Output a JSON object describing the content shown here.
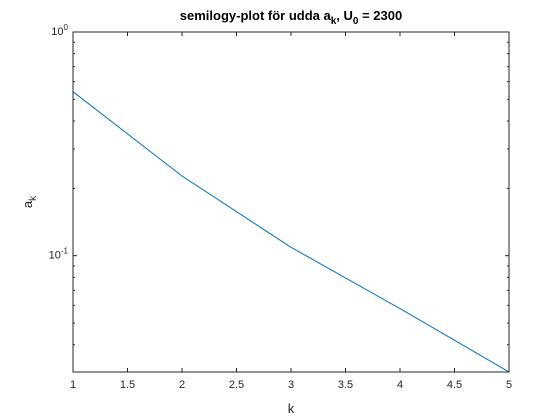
{
  "chart_data": {
    "type": "line",
    "title": {
      "prefix": "semilogy-plot för udda a",
      "prefix_sub": "k",
      "middle": ", U",
      "middle_sub": "0",
      "suffix": " = 2300"
    },
    "xlabel": "k",
    "ylabel": {
      "main": "a",
      "sub": "k"
    },
    "xscale": "linear",
    "yscale": "log",
    "xlim": [
      1,
      5
    ],
    "ylim": [
      0.0302,
      1
    ],
    "grid": false,
    "xticks": [
      1,
      1.5,
      2,
      2.5,
      3,
      3.5,
      4,
      4.5,
      5
    ],
    "xtick_labels": [
      "1",
      "1.5",
      "2",
      "2.5",
      "3",
      "3.5",
      "4",
      "4.5",
      "5"
    ],
    "yticks": [
      {
        "value": 1,
        "base": "10",
        "exp": "0"
      },
      {
        "value": 0.1,
        "base": "10",
        "exp": "-1"
      }
    ],
    "series": [
      {
        "x": [
          1,
          2,
          3,
          4,
          5
        ],
        "y": [
          0.541,
          0.227,
          0.109,
          0.058,
          0.0302
        ],
        "color": "#0072BD"
      }
    ]
  }
}
